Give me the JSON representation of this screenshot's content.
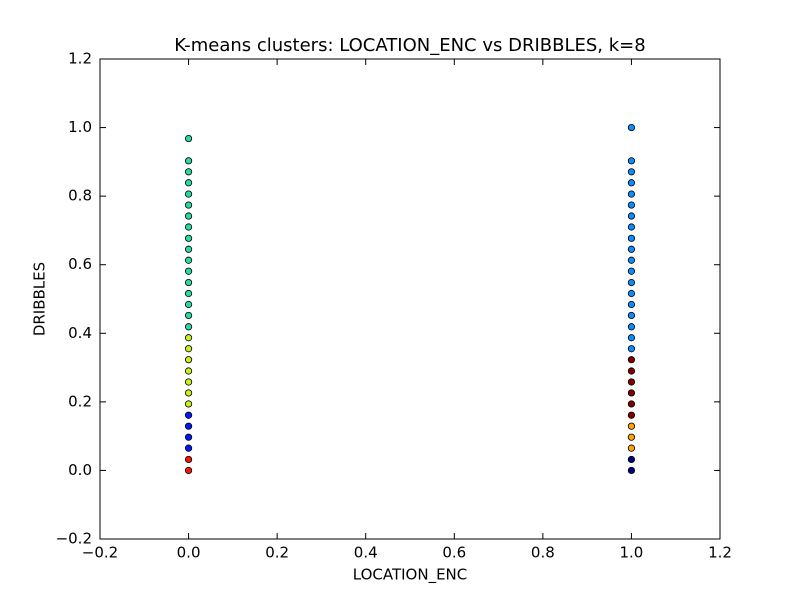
{
  "chart_data": {
    "type": "scatter",
    "title": "K-means clusters: LOCATION_ENC vs DRIBBLES, k=8",
    "x_label": "LOCATION_ENC",
    "y_label": "DRIBBLES",
    "xlim": [
      -0.2,
      1.2
    ],
    "xticks": [
      {
        "value": -0.2,
        "label": "−0.2"
      },
      {
        "value": 0,
        "label": "0.0"
      },
      0.2,
      0.4,
      0.6,
      0.8,
      {
        "value": 1,
        "label": "1.0"
      },
      1.2
    ],
    "ylim": [
      -0.2,
      1.2
    ],
    "yticks": [
      {
        "value": -0.2,
        "label": "−0.2"
      },
      {
        "value": 0,
        "label": "0.0"
      },
      0.2,
      0.4,
      0.6,
      0.8,
      {
        "value": 1,
        "label": "1.0"
      },
      1.2
    ],
    "grid": false,
    "series": [
      {
        "color": "#ff1300",
        "x": [
          0,
          0
        ],
        "values": [
          0,
          0.032
        ]
      },
      {
        "color": "#0018ff",
        "x": [
          0,
          0,
          0,
          0
        ],
        "values": [
          0.065,
          0.097,
          0.129,
          0.161
        ]
      },
      {
        "color": "#c8ef20",
        "x": [
          0,
          0,
          0,
          0,
          0,
          0,
          0
        ],
        "values": [
          0.194,
          0.226,
          0.258,
          0.29,
          0.323,
          0.355,
          0.387
        ]
      },
      {
        "color": "#2adba0",
        "x": [
          0,
          0,
          0,
          0,
          0,
          0,
          0,
          0,
          0,
          0,
          0,
          0,
          0,
          0,
          0,
          0,
          0
        ],
        "values": [
          0.419,
          0.452,
          0.484,
          0.516,
          0.548,
          0.581,
          0.613,
          0.645,
          0.677,
          0.71,
          0.742,
          0.774,
          0.806,
          0.839,
          0.871,
          0.903,
          0.968
        ]
      },
      {
        "color": "#00007f",
        "x": [
          1,
          1
        ],
        "values": [
          0,
          0.032
        ]
      },
      {
        "color": "#ffa400",
        "x": [
          1,
          1,
          1
        ],
        "values": [
          0.065,
          0.097,
          0.129
        ]
      },
      {
        "color": "#800000",
        "x": [
          1,
          1,
          1,
          1,
          1,
          1
        ],
        "values": [
          0.161,
          0.194,
          0.226,
          0.258,
          0.29,
          0.323
        ]
      },
      {
        "color": "#0a8cff",
        "x": [
          1,
          1,
          1,
          1,
          1,
          1,
          1,
          1,
          1,
          1,
          1,
          1,
          1,
          1,
          1,
          1,
          1,
          1,
          1
        ],
        "values": [
          0.355,
          0.387,
          0.419,
          0.452,
          0.484,
          0.516,
          0.548,
          0.581,
          0.613,
          0.645,
          0.677,
          0.71,
          0.742,
          0.774,
          0.806,
          0.839,
          0.871,
          0.903,
          1.0
        ]
      }
    ]
  }
}
